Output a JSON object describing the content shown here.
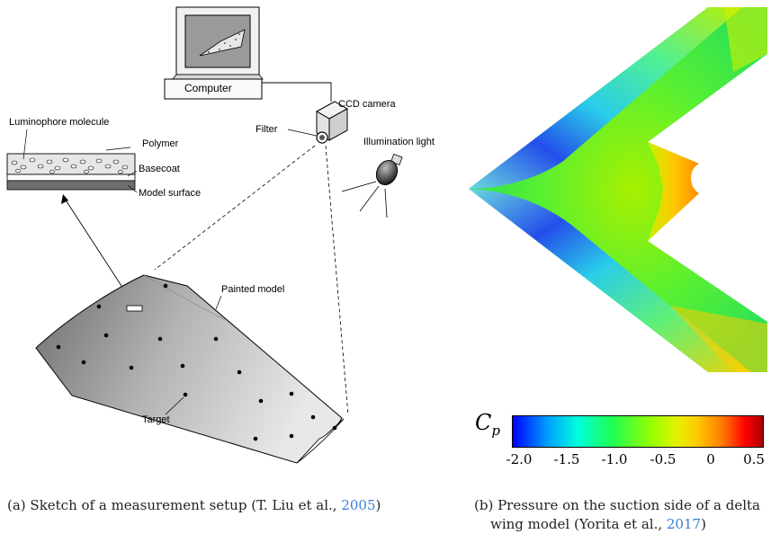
{
  "figure_a": {
    "labels": {
      "computer": "Computer",
      "ccd_camera": "CCD camera",
      "filter": "Filter",
      "illumination_light": "Illumination light",
      "luminophore": "Luminophore molecule",
      "polymer": "Polymer",
      "basecoat": "Basecoat",
      "model_surface": "Model surface",
      "painted_model": "Painted model",
      "target": "Target"
    },
    "caption": {
      "prefix": "(a)  Sketch of a measurement setup (T. Liu et al., ",
      "year": "2005",
      "suffix": ")"
    }
  },
  "figure_b": {
    "colorbar": {
      "symbol": "C",
      "subscript": "p",
      "ticks": [
        "-2.0",
        "-1.5",
        "-1.0",
        "-0.5",
        "0",
        "0.5"
      ],
      "range": [
        -2.0,
        0.5
      ],
      "colormap": [
        "#0000ff",
        "#00c8ff",
        "#00ffc8",
        "#32ff32",
        "#c8ff00",
        "#ffd200",
        "#ff7800",
        "#ff0000",
        "#aa0000"
      ]
    },
    "caption": {
      "line1": "(b)  Pressure on the suction side of a delta",
      "line2_prefix": "wing model (Yorita et al., ",
      "year": "2017",
      "suffix": ")"
    }
  }
}
